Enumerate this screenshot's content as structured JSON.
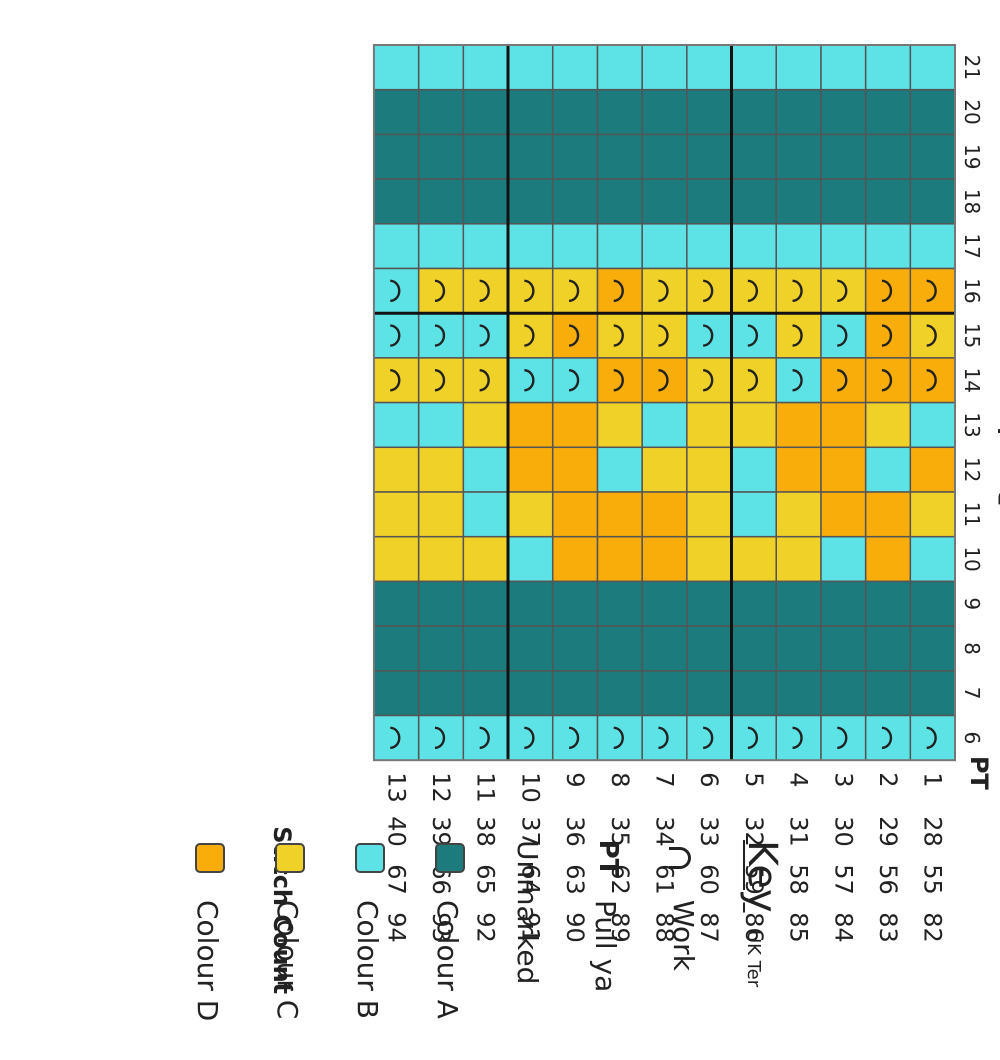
{
  "chart": {
    "stitch_count_label": "Stitch Count",
    "rounds_label": "Rounds",
    "pt_marker": "PT",
    "rounds": [
      "6",
      "7",
      "8",
      "9",
      "10",
      "11",
      "12",
      "13",
      "14",
      "15",
      "16",
      "17",
      "18",
      "19",
      "20",
      "21"
    ],
    "stitch_numbers": [
      "1",
      "2",
      "3",
      "4",
      "5",
      "6",
      "7",
      "8",
      "9",
      "10",
      "11",
      "12",
      "13"
    ],
    "stitch_count_rows": [
      [
        "28",
        "29",
        "30",
        "31",
        "32",
        "33",
        "34",
        "35",
        "36",
        "37",
        "38",
        "39",
        "40"
      ],
      [
        "55",
        "56",
        "57",
        "58",
        "59",
        "60",
        "61",
        "62",
        "63",
        "64",
        "65",
        "66",
        "67"
      ],
      [
        "82",
        "83",
        "84",
        "85",
        "86",
        "87",
        "88",
        "89",
        "90",
        "91",
        "92",
        "93",
        "94"
      ]
    ],
    "colors": {
      "A": "#1b7b7d",
      "B": "#5de3e6",
      "C": "#f0d128",
      "D": "#f8ad0b"
    },
    "grid": [
      [
        "B",
        "A",
        "A",
        "A",
        "B",
        "C",
        "D",
        "B",
        "D",
        "C",
        "D",
        "B",
        "A",
        "A",
        "A",
        "B"
      ],
      [
        "B",
        "A",
        "A",
        "A",
        "D",
        "D",
        "B",
        "C",
        "D",
        "D",
        "D",
        "B",
        "A",
        "A",
        "A",
        "B"
      ],
      [
        "B",
        "A",
        "A",
        "A",
        "B",
        "D",
        "D",
        "D",
        "D",
        "B",
        "C",
        "B",
        "A",
        "A",
        "A",
        "B"
      ],
      [
        "B",
        "A",
        "A",
        "A",
        "C",
        "C",
        "D",
        "D",
        "B",
        "C",
        "C",
        "B",
        "A",
        "A",
        "A",
        "B"
      ],
      [
        "B",
        "A",
        "A",
        "A",
        "C",
        "B",
        "B",
        "C",
        "C",
        "B",
        "C",
        "B",
        "A",
        "A",
        "A",
        "B"
      ],
      [
        "B",
        "A",
        "A",
        "A",
        "C",
        "C",
        "C",
        "C",
        "C",
        "B",
        "C",
        "B",
        "A",
        "A",
        "A",
        "B"
      ],
      [
        "B",
        "A",
        "A",
        "A",
        "D",
        "D",
        "C",
        "B",
        "D",
        "C",
        "C",
        "B",
        "A",
        "A",
        "A",
        "B"
      ],
      [
        "B",
        "A",
        "A",
        "A",
        "D",
        "D",
        "B",
        "C",
        "D",
        "C",
        "D",
        "B",
        "A",
        "A",
        "A",
        "B"
      ],
      [
        "B",
        "A",
        "A",
        "A",
        "D",
        "D",
        "D",
        "D",
        "B",
        "D",
        "C",
        "B",
        "A",
        "A",
        "A",
        "B"
      ],
      [
        "B",
        "A",
        "A",
        "A",
        "B",
        "C",
        "D",
        "D",
        "B",
        "C",
        "C",
        "B",
        "A",
        "A",
        "A",
        "B"
      ],
      [
        "B",
        "A",
        "A",
        "A",
        "C",
        "B",
        "B",
        "C",
        "C",
        "B",
        "C",
        "B",
        "A",
        "A",
        "A",
        "B"
      ],
      [
        "B",
        "A",
        "A",
        "A",
        "C",
        "C",
        "C",
        "B",
        "C",
        "B",
        "C",
        "B",
        "A",
        "A",
        "A",
        "B"
      ],
      [
        "B",
        "A",
        "A",
        "A",
        "C",
        "C",
        "C",
        "B",
        "C",
        "B",
        "B",
        "B",
        "A",
        "A",
        "A",
        "B"
      ]
    ],
    "stitch_mark_rounds": [
      "6",
      "14",
      "15",
      "16"
    ]
  },
  "key": {
    "title": "Key",
    "subtitle": "UK Ter",
    "items": [
      {
        "symbol": "arc-icon",
        "label": "Work"
      },
      {
        "symbol": "pt",
        "symbol_text": "PT",
        "label": "Pull ya"
      },
      {
        "symbol": "none",
        "label": "Unmarked"
      },
      {
        "symbol": "swatch",
        "color": "#1b7b7d",
        "label": "Colour A"
      },
      {
        "symbol": "swatch",
        "color": "#5de3e6",
        "label": "Colour B"
      },
      {
        "symbol": "swatch",
        "color": "#f0d128",
        "label": "Colour C"
      },
      {
        "symbol": "swatch",
        "color": "#f8ad0b",
        "label": "Colour D"
      }
    ]
  }
}
